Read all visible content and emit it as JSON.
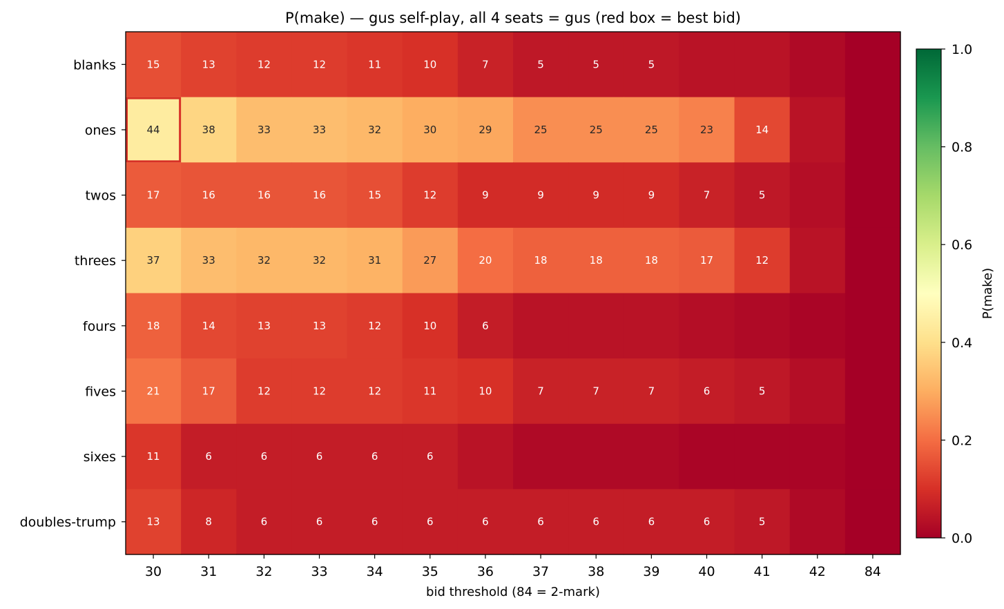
{
  "chart_data": {
    "type": "heatmap",
    "title": "P(make) — gus self-play, all 4 seats = gus  (red box = best bid)",
    "xlabel": "bid threshold (84 = 2-mark)",
    "ylabel": "",
    "x_categories": [
      "30",
      "31",
      "32",
      "33",
      "34",
      "35",
      "36",
      "37",
      "38",
      "39",
      "40",
      "41",
      "42",
      "84"
    ],
    "y_categories": [
      "blanks",
      "ones",
      "twos",
      "threes",
      "fours",
      "fives",
      "sixes",
      "doubles-trump"
    ],
    "values": [
      [
        0.15,
        0.13,
        0.12,
        0.12,
        0.11,
        0.1,
        0.07,
        0.05,
        0.05,
        0.05,
        0.04,
        0.04,
        0.02,
        0.0
      ],
      [
        0.44,
        0.38,
        0.33,
        0.33,
        0.32,
        0.3,
        0.29,
        0.25,
        0.25,
        0.25,
        0.23,
        0.14,
        0.04,
        0.0
      ],
      [
        0.17,
        0.16,
        0.16,
        0.16,
        0.15,
        0.12,
        0.09,
        0.09,
        0.09,
        0.09,
        0.07,
        0.05,
        0.03,
        0.0
      ],
      [
        0.37,
        0.33,
        0.32,
        0.32,
        0.31,
        0.27,
        0.2,
        0.18,
        0.18,
        0.18,
        0.17,
        0.12,
        0.04,
        0.0
      ],
      [
        0.18,
        0.14,
        0.13,
        0.13,
        0.12,
        0.1,
        0.06,
        0.04,
        0.04,
        0.04,
        0.03,
        0.02,
        0.01,
        0.0
      ],
      [
        0.21,
        0.17,
        0.12,
        0.12,
        0.12,
        0.11,
        0.1,
        0.07,
        0.07,
        0.07,
        0.06,
        0.05,
        0.03,
        0.0
      ],
      [
        0.11,
        0.06,
        0.06,
        0.06,
        0.06,
        0.06,
        0.04,
        0.02,
        0.02,
        0.02,
        0.01,
        0.01,
        0.01,
        0.0
      ],
      [
        0.13,
        0.08,
        0.06,
        0.06,
        0.06,
        0.06,
        0.06,
        0.06,
        0.06,
        0.06,
        0.06,
        0.05,
        0.02,
        0.0
      ]
    ],
    "cell_labels": [
      [
        "15",
        "13",
        "12",
        "12",
        "11",
        "10",
        "7",
        "5",
        "5",
        "5",
        "",
        "",
        "",
        ""
      ],
      [
        "44",
        "38",
        "33",
        "33",
        "32",
        "30",
        "29",
        "25",
        "25",
        "25",
        "23",
        "14",
        "",
        ""
      ],
      [
        "17",
        "16",
        "16",
        "16",
        "15",
        "12",
        "9",
        "9",
        "9",
        "9",
        "7",
        "5",
        "",
        ""
      ],
      [
        "37",
        "33",
        "32",
        "32",
        "31",
        "27",
        "20",
        "18",
        "18",
        "18",
        "17",
        "12",
        "",
        ""
      ],
      [
        "18",
        "14",
        "13",
        "13",
        "12",
        "10",
        "6",
        "",
        "",
        "",
        "",
        "",
        "",
        ""
      ],
      [
        "21",
        "17",
        "12",
        "12",
        "12",
        "11",
        "10",
        "7",
        "7",
        "7",
        "6",
        "5",
        "",
        ""
      ],
      [
        "11",
        "6",
        "6",
        "6",
        "6",
        "6",
        "",
        "",
        "",
        "",
        "",
        "",
        "",
        ""
      ],
      [
        "13",
        "8",
        "6",
        "6",
        "6",
        "6",
        "6",
        "6",
        "6",
        "6",
        "6",
        "5",
        "",
        ""
      ]
    ],
    "best_bid": {
      "row": "ones",
      "col": "30"
    },
    "best_bid_box_color": "#d73027",
    "colormap": "RdYlGn",
    "vmin": 0.0,
    "vmax": 1.0,
    "colorbar": {
      "label": "P(make)",
      "ticks": [
        0.0,
        0.2,
        0.4,
        0.6,
        0.8,
        1.0
      ],
      "tick_labels": [
        "0.0",
        "0.2",
        "0.4",
        "0.6",
        "0.8",
        "1.0"
      ]
    }
  }
}
